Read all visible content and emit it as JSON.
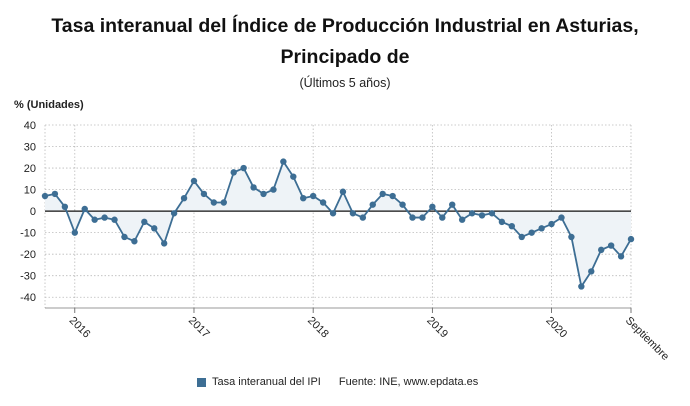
{
  "title_line1": "Tasa interanual del Índice de Producción Industrial en Asturias,",
  "title_line2": "Principado de",
  "subtitle": "(Últimos 5 años)",
  "colors": {
    "series": "#3d6e94",
    "fill": "#eef3f7",
    "zero_line": "#111111",
    "grid": "#bbbbbb"
  },
  "legend": {
    "label": "Tasa interanual del IPI",
    "source": "Fuente: INE, www.epdata.es"
  },
  "chart_data": {
    "type": "line",
    "ylabel": "% (Unidades)",
    "ylim": [
      -45,
      40
    ],
    "yticks": [
      40,
      30,
      20,
      10,
      0,
      -10,
      -20,
      -30,
      -40
    ],
    "grid": true,
    "xtick_labels": [
      "2016",
      "2017",
      "2018",
      "2019",
      "2020",
      "Septiembre"
    ],
    "series": [
      {
        "name": "Tasa interanual del IPI",
        "x": [
          "2015-10",
          "2015-11",
          "2015-12",
          "2016-01",
          "2016-02",
          "2016-03",
          "2016-04",
          "2016-05",
          "2016-06",
          "2016-07",
          "2016-08",
          "2016-09",
          "2016-10",
          "2016-11",
          "2016-12",
          "2017-01",
          "2017-02",
          "2017-03",
          "2017-04",
          "2017-05",
          "2017-06",
          "2017-07",
          "2017-08",
          "2017-09",
          "2017-10",
          "2017-11",
          "2017-12",
          "2018-01",
          "2018-02",
          "2018-03",
          "2018-04",
          "2018-05",
          "2018-06",
          "2018-07",
          "2018-08",
          "2018-09",
          "2018-10",
          "2018-11",
          "2018-12",
          "2019-01",
          "2019-02",
          "2019-03",
          "2019-04",
          "2019-05",
          "2019-06",
          "2019-07",
          "2019-08",
          "2019-09",
          "2019-10",
          "2019-11",
          "2019-12",
          "2020-01",
          "2020-02",
          "2020-03",
          "2020-04",
          "2020-05",
          "2020-06",
          "2020-07",
          "2020-08",
          "2020-09"
        ],
        "values": [
          7,
          8,
          2,
          -10,
          1,
          -4,
          -3,
          -4,
          -12,
          -14,
          -5,
          -8,
          -15,
          -1,
          6,
          14,
          8,
          4,
          4,
          18,
          20,
          11,
          8,
          10,
          23,
          16,
          6,
          7,
          4,
          -1,
          9,
          -1,
          -3,
          3,
          8,
          7,
          3,
          -3,
          -3,
          2,
          -3,
          3,
          -4,
          -1,
          -2,
          -1,
          -5,
          -7,
          -12,
          -10,
          -8,
          -6,
          -3,
          -12,
          -35,
          -28,
          -18,
          -16,
          -21,
          -13
        ]
      }
    ]
  }
}
